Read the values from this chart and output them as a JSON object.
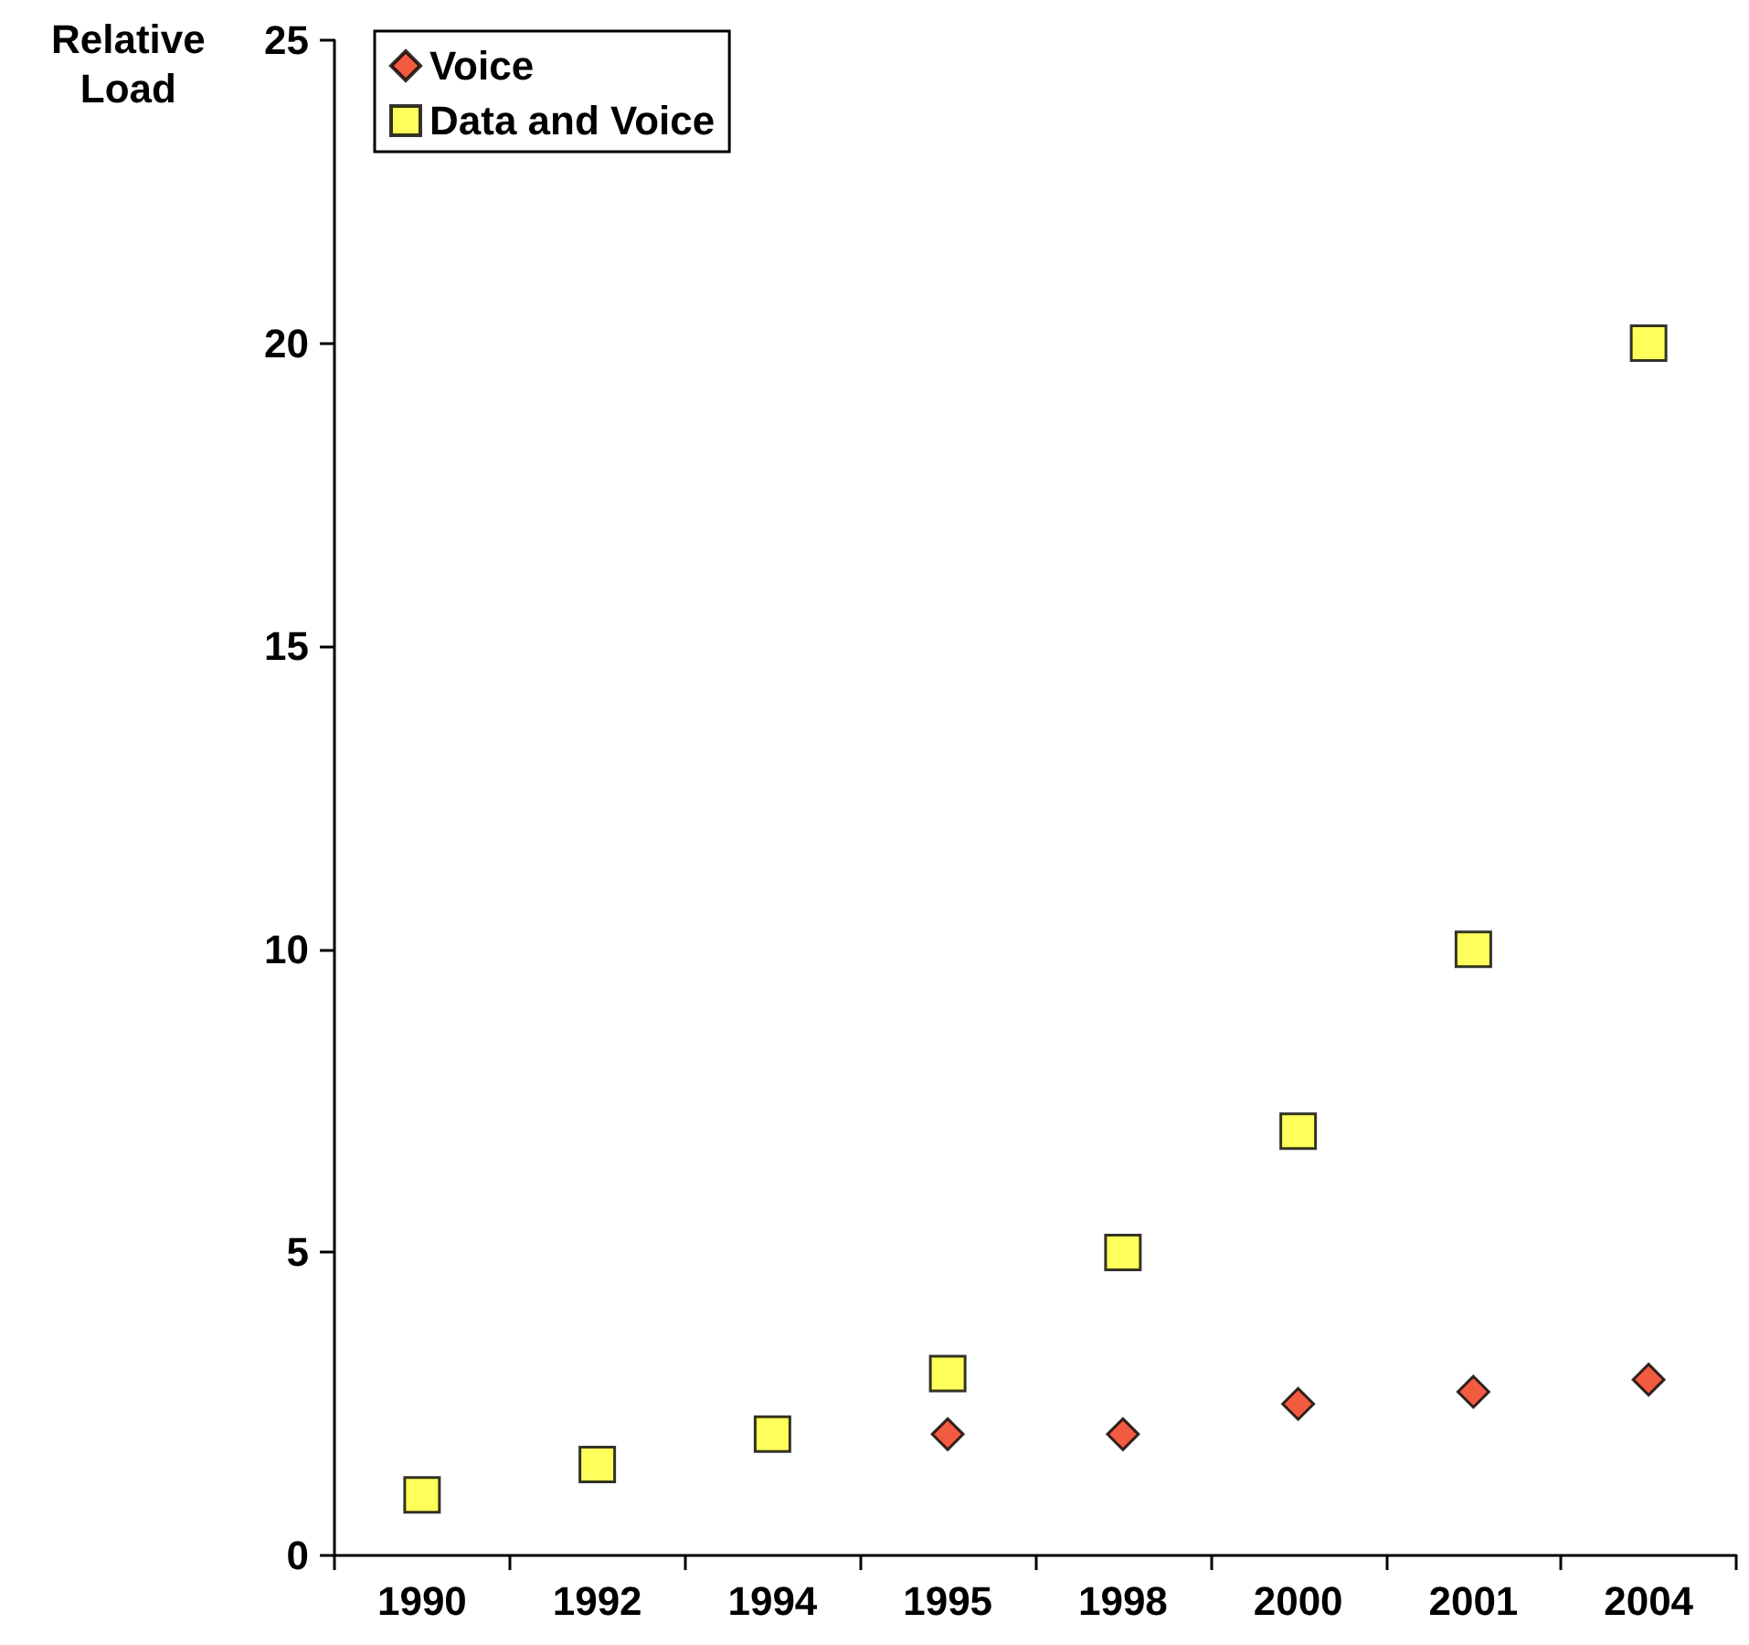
{
  "chart_data": {
    "type": "scatter",
    "ylabel": "Relative\nLoad",
    "categories": [
      "1990",
      "1992",
      "1994",
      "1995",
      "1998",
      "2000",
      "2001",
      "2004"
    ],
    "series": [
      {
        "name": "Voice",
        "color": "#ee3311",
        "marker": "diamond",
        "values": [
          null,
          null,
          null,
          2,
          2,
          2.5,
          2.7,
          2.9
        ]
      },
      {
        "name": "Data and Voice",
        "color": "#ffff33",
        "marker": "square",
        "values": [
          1,
          1.5,
          2,
          3,
          5,
          7,
          10,
          20
        ]
      }
    ],
    "ylim": [
      0,
      25
    ],
    "yticks": [
      0,
      5,
      10,
      15,
      20,
      25
    ],
    "grid": false,
    "legend": "top left"
  }
}
